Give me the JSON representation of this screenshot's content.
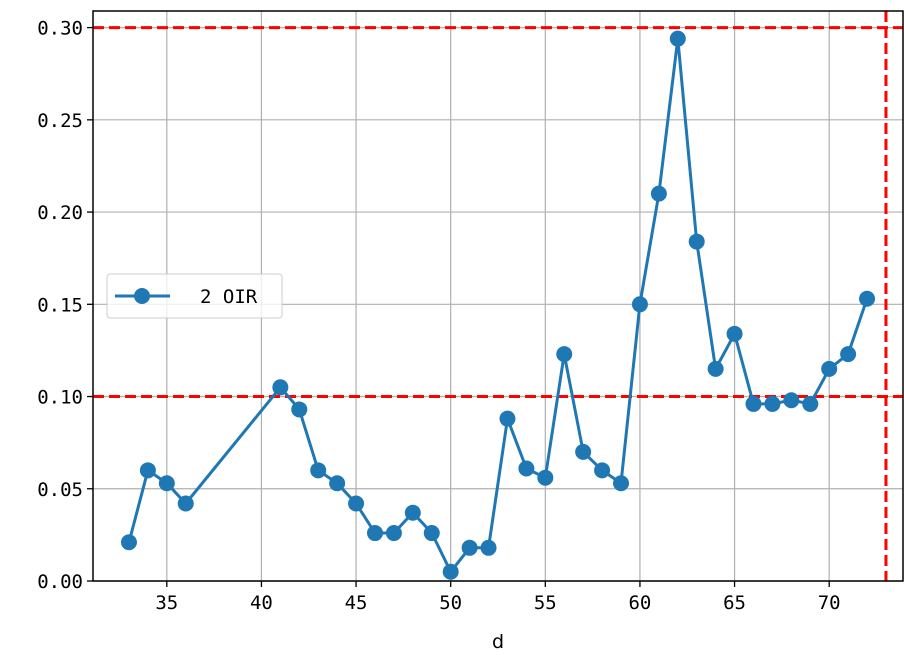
{
  "chart_data": {
    "type": "line",
    "xlabel": "d",
    "ylabel": "",
    "xlim": [
      31.1,
      73.9
    ],
    "ylim": [
      0,
      0.309
    ],
    "xticks": [
      35,
      40,
      45,
      50,
      55,
      60,
      65,
      70
    ],
    "yticks": [
      0.0,
      0.05,
      0.1,
      0.15,
      0.2,
      0.25,
      0.3
    ],
    "ytick_labels": [
      "0.00",
      "0.05",
      "0.10",
      "0.15",
      "0.20",
      "0.25",
      "0.30"
    ],
    "grid": true,
    "legend_position": "center-left",
    "series": [
      {
        "name": "2 OIR",
        "color": "#1f77b4",
        "marker": "circle",
        "x": [
          33,
          34,
          35,
          36,
          41,
          42,
          43,
          44,
          45,
          46,
          47,
          48,
          49,
          50,
          51,
          52,
          53,
          54,
          55,
          56,
          57,
          58,
          59,
          60,
          61,
          62,
          63,
          64,
          65,
          66,
          67,
          68,
          69,
          70,
          71,
          72
        ],
        "y": [
          0.021,
          0.06,
          0.053,
          0.042,
          0.105,
          0.093,
          0.06,
          0.053,
          0.042,
          0.026,
          0.026,
          0.037,
          0.026,
          0.005,
          0.018,
          0.018,
          0.088,
          0.061,
          0.056,
          0.123,
          0.07,
          0.06,
          0.053,
          0.15,
          0.21,
          0.294,
          0.184,
          0.115,
          0.134,
          0.096,
          0.096,
          0.098,
          0.096,
          0.115,
          0.123,
          0.153
        ]
      }
    ],
    "reference_lines": [
      {
        "orientation": "horizontal",
        "value": 0.3,
        "color": "#ff0000",
        "style": "dashed"
      },
      {
        "orientation": "horizontal",
        "value": 0.1,
        "color": "#ff0000",
        "style": "dashed"
      },
      {
        "orientation": "vertical",
        "value": 73,
        "color": "#ff0000",
        "style": "dashed"
      }
    ]
  }
}
